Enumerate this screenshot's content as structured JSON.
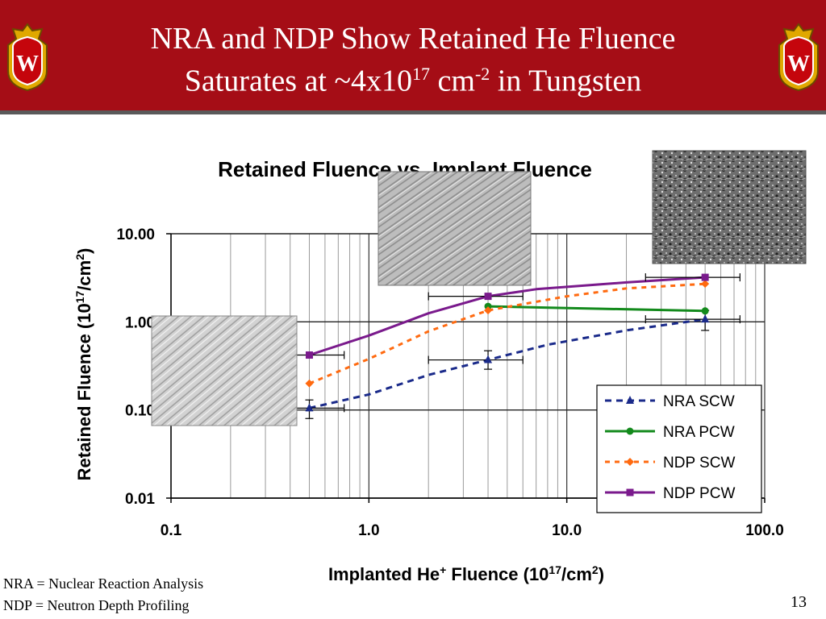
{
  "slide": {
    "title_line1": "NRA and NDP Show Retained He Fluence",
    "title_line2_pre": "Saturates at ~4x10",
    "title_line2_exp": "17",
    "title_line2_mid": " cm",
    "title_line2_exp2": "-2",
    "title_line2_post": " in Tungsten",
    "footnote_1": "NRA = Nuclear Reaction Analysis",
    "footnote_2": "NDP = Neutron Depth Profiling",
    "page_number": "13",
    "crest_letter": "W"
  },
  "chart_data": {
    "type": "line",
    "title": "Retained Fluence vs. Implant Fluence",
    "xlabel_pre": "Implanted He",
    "xlabel_sup": "+",
    "xlabel_mid": " Fluence (10",
    "xlabel_sup2": "17",
    "xlabel_mid2": "/cm",
    "xlabel_sup3": "2",
    "xlabel_post": ")",
    "ylabel_pre": "Retained Fluence (10",
    "ylabel_sup": "17",
    "ylabel_mid": "/cm",
    "ylabel_sup2": "2",
    "ylabel_post": ")",
    "xscale": "log",
    "yscale": "log",
    "xlim": [
      0.1,
      100
    ],
    "ylim": [
      0.01,
      10
    ],
    "x_ticks": [
      0.1,
      1.0,
      10.0,
      100.0
    ],
    "x_tick_labels": [
      "0.1",
      "1.0",
      "10.0",
      "100.0"
    ],
    "y_ticks": [
      0.01,
      0.1,
      1.0,
      10.0
    ],
    "y_tick_labels": [
      "0.01",
      "0.10",
      "1.00",
      "10.00"
    ],
    "grid": true,
    "legend_position": "bottom-right",
    "series": [
      {
        "name": "NRA SCW",
        "color": "#1a2a8a",
        "style": "dashed",
        "marker": "triangle",
        "points": [
          {
            "x": 0.5,
            "y": 0.105,
            "xerr": [
              0.3,
              0.75
            ],
            "yerr": [
              0.08,
              0.13
            ]
          },
          {
            "x": 4.0,
            "y": 0.37,
            "xerr": [
              2.0,
              6.0
            ],
            "yerr": [
              0.29,
              0.47
            ]
          },
          {
            "x": 50.0,
            "y": 1.07,
            "xerr": [
              25.0,
              75.0
            ],
            "yerr": [
              0.8,
              1.35
            ]
          }
        ],
        "curve": [
          [
            0.5,
            0.105
          ],
          [
            1,
            0.15
          ],
          [
            2,
            0.25
          ],
          [
            4,
            0.37
          ],
          [
            8,
            0.55
          ],
          [
            20,
            0.8
          ],
          [
            50,
            1.07
          ]
        ]
      },
      {
        "name": "NRA PCW",
        "color": "#138a1c",
        "style": "solid",
        "marker": "circle",
        "points": [
          {
            "x": 4.0,
            "y": 1.5
          },
          {
            "x": 50.0,
            "y": 1.33
          }
        ],
        "curve": [
          [
            4,
            1.5
          ],
          [
            50,
            1.33
          ]
        ]
      },
      {
        "name": "NDP SCW",
        "color": "#ff6a10",
        "style": "dotted",
        "marker": "diamond",
        "points": [
          {
            "x": 0.5,
            "y": 0.2
          },
          {
            "x": 4.0,
            "y": 1.35
          },
          {
            "x": 50.0,
            "y": 2.7
          }
        ],
        "curve": [
          [
            0.5,
            0.2
          ],
          [
            1,
            0.38
          ],
          [
            2,
            0.78
          ],
          [
            4,
            1.35
          ],
          [
            10,
            1.95
          ],
          [
            20,
            2.4
          ],
          [
            50,
            2.7
          ]
        ]
      },
      {
        "name": "NDP PCW",
        "color": "#7a1a8c",
        "style": "solid",
        "marker": "square",
        "points": [
          {
            "x": 0.5,
            "y": 0.42,
            "xerr": [
              0.3,
              0.75
            ]
          },
          {
            "x": 4.0,
            "y": 1.95,
            "xerr": [
              2.0,
              6.0
            ]
          },
          {
            "x": 50.0,
            "y": 3.2,
            "xerr": [
              25.0,
              75.0
            ]
          }
        ],
        "curve": [
          [
            0.5,
            0.42
          ],
          [
            1,
            0.7
          ],
          [
            2,
            1.25
          ],
          [
            4,
            1.95
          ],
          [
            7,
            2.35
          ],
          [
            20,
            2.8
          ],
          [
            50,
            3.2
          ]
        ]
      }
    ]
  }
}
